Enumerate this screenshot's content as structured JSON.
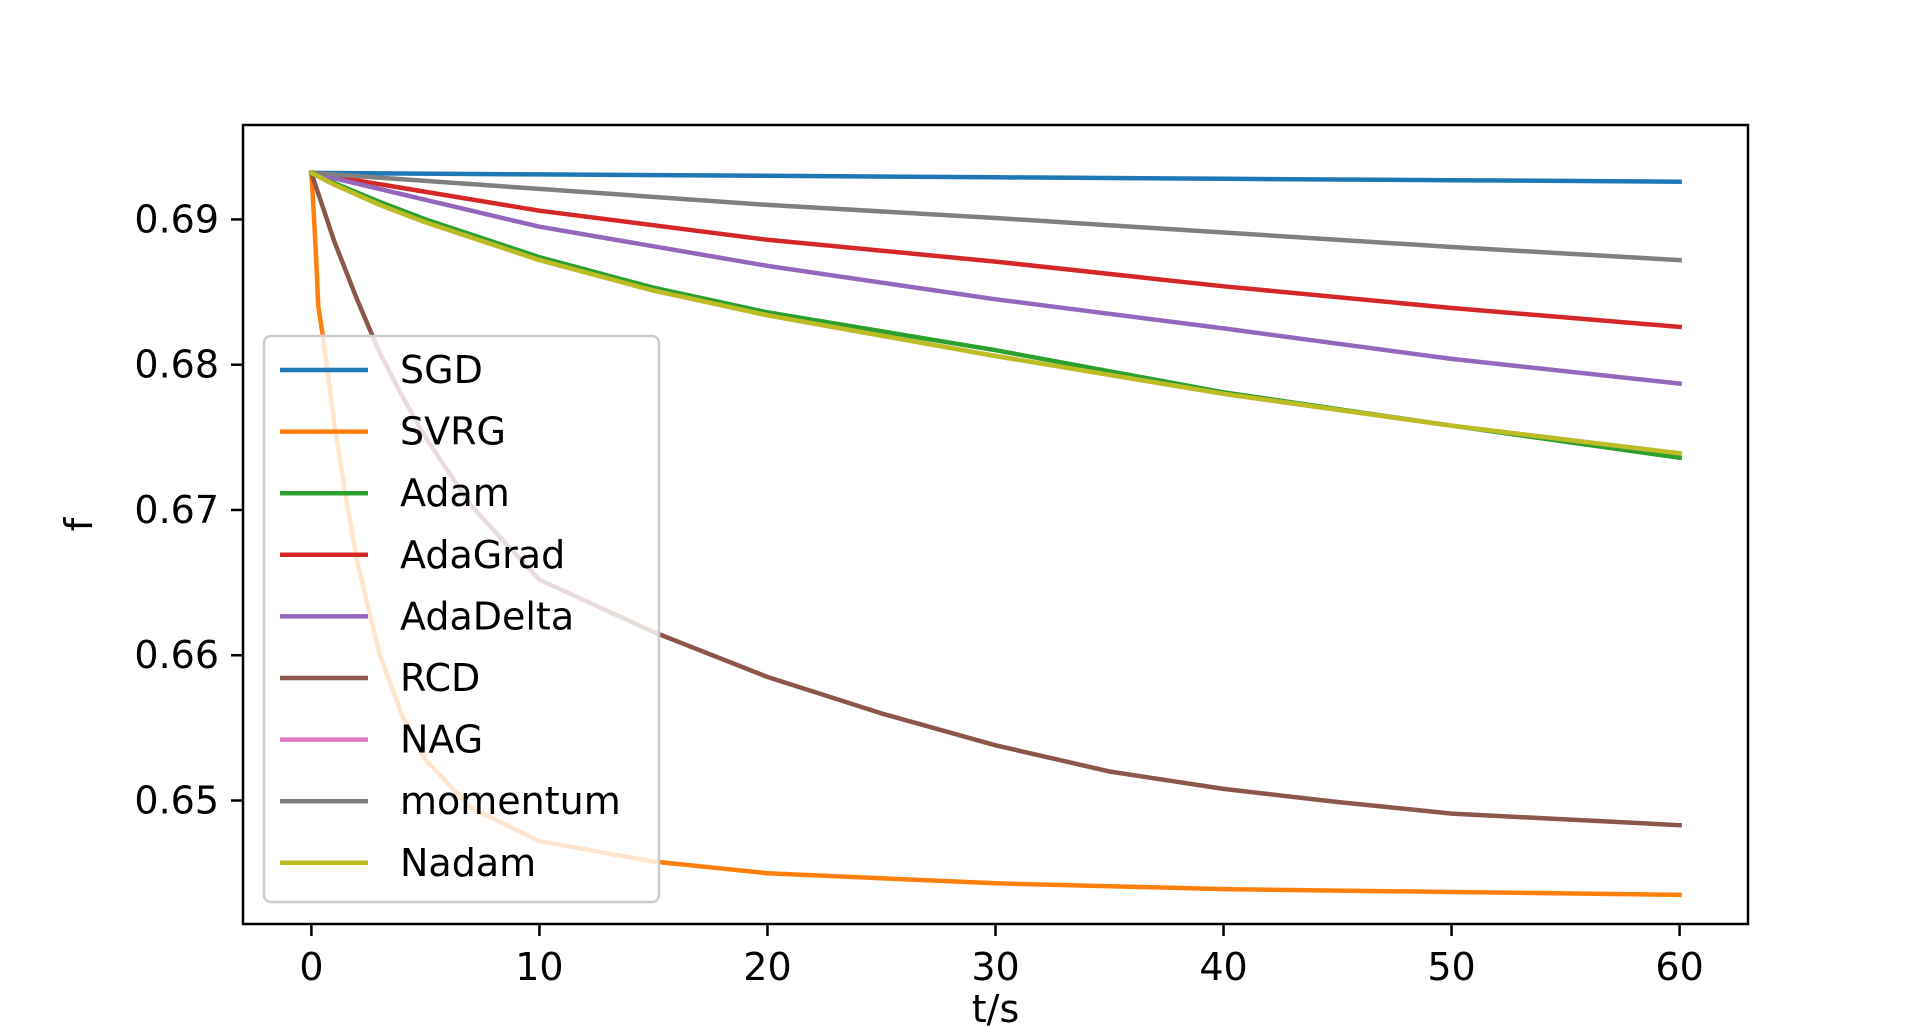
{
  "chart_data": {
    "type": "line",
    "title": "",
    "xlabel": "t/s",
    "ylabel": "f",
    "xlim": [
      -3,
      63
    ],
    "ylim": [
      0.6415,
      0.6965
    ],
    "xticks": [
      0,
      10,
      20,
      30,
      40,
      50,
      60
    ],
    "yticks": [
      0.65,
      0.66,
      0.67,
      0.68,
      0.69
    ],
    "xtick_labels": [
      "0",
      "10",
      "20",
      "30",
      "40",
      "50",
      "60"
    ],
    "ytick_labels": [
      "0.65",
      "0.66",
      "0.67",
      "0.68",
      "0.69"
    ],
    "grid": false,
    "legend_position": "lower-left",
    "series": [
      {
        "name": "SGD",
        "color": "#1f77b4",
        "x": [
          0,
          10,
          20,
          30,
          40,
          50,
          60
        ],
        "y": [
          0.6932,
          0.6931,
          0.693,
          0.6929,
          0.6928,
          0.6927,
          0.6926
        ]
      },
      {
        "name": "SVRG",
        "color": "#ff7f0e",
        "x": [
          0,
          0.1,
          0.2,
          0.3,
          0.5,
          1,
          1.5,
          2,
          3,
          4,
          5,
          7,
          10,
          15,
          20,
          30,
          40,
          50,
          60
        ],
        "y": [
          0.6932,
          0.6905,
          0.6875,
          0.684,
          0.682,
          0.676,
          0.671,
          0.6665,
          0.66,
          0.6558,
          0.6528,
          0.6495,
          0.6472,
          0.6458,
          0.645,
          0.6443,
          0.6439,
          0.6437,
          0.6435
        ]
      },
      {
        "name": "Adam",
        "color": "#2ca02c",
        "x": [
          0,
          1,
          3,
          5,
          10,
          15,
          20,
          30,
          40,
          50,
          60
        ],
        "y": [
          0.6932,
          0.6925,
          0.6912,
          0.69,
          0.6874,
          0.6853,
          0.6836,
          0.681,
          0.6781,
          0.6758,
          0.6736
        ]
      },
      {
        "name": "AdaGrad",
        "color": "#d62728",
        "x": [
          0,
          10,
          20,
          30,
          40,
          50,
          60
        ],
        "y": [
          0.6932,
          0.6906,
          0.6886,
          0.6871,
          0.6854,
          0.6839,
          0.6826
        ]
      },
      {
        "name": "AdaDelta",
        "color": "#9467bd",
        "x": [
          0,
          10,
          20,
          30,
          40,
          50,
          60
        ],
        "y": [
          0.6932,
          0.6895,
          0.6868,
          0.6845,
          0.6825,
          0.6804,
          0.6787
        ]
      },
      {
        "name": "RCD",
        "color": "#8c564b",
        "x": [
          0,
          1,
          2,
          3,
          4,
          5,
          7,
          10,
          15,
          20,
          25,
          30,
          35,
          40,
          45,
          50,
          55,
          60
        ],
        "y": [
          0.6932,
          0.6885,
          0.6845,
          0.6808,
          0.6778,
          0.675,
          0.6703,
          0.6652,
          0.6616,
          0.6585,
          0.656,
          0.6538,
          0.652,
          0.6508,
          0.6499,
          0.6491,
          0.6487,
          0.6483
        ]
      },
      {
        "name": "NAG",
        "color": "#e377c2",
        "x": [
          0,
          1,
          3,
          5,
          10,
          15,
          20,
          30,
          40,
          50,
          60
        ],
        "y": [
          0.6932,
          0.6924,
          0.691,
          0.6898,
          0.6872,
          0.6851,
          0.6834,
          0.6806,
          0.678,
          0.6758,
          0.6739
        ]
      },
      {
        "name": "momentum",
        "color": "#7f7f7f",
        "x": [
          0,
          10,
          20,
          30,
          40,
          50,
          60
        ],
        "y": [
          0.6932,
          0.6921,
          0.691,
          0.6901,
          0.6891,
          0.6881,
          0.6872
        ]
      },
      {
        "name": "Nadam",
        "color": "#bcbd22",
        "x": [
          0,
          1,
          3,
          5,
          10,
          15,
          20,
          30,
          40,
          50,
          60
        ],
        "y": [
          0.6932,
          0.6924,
          0.691,
          0.6898,
          0.6872,
          0.6851,
          0.6834,
          0.6806,
          0.678,
          0.6758,
          0.6739
        ]
      }
    ]
  }
}
